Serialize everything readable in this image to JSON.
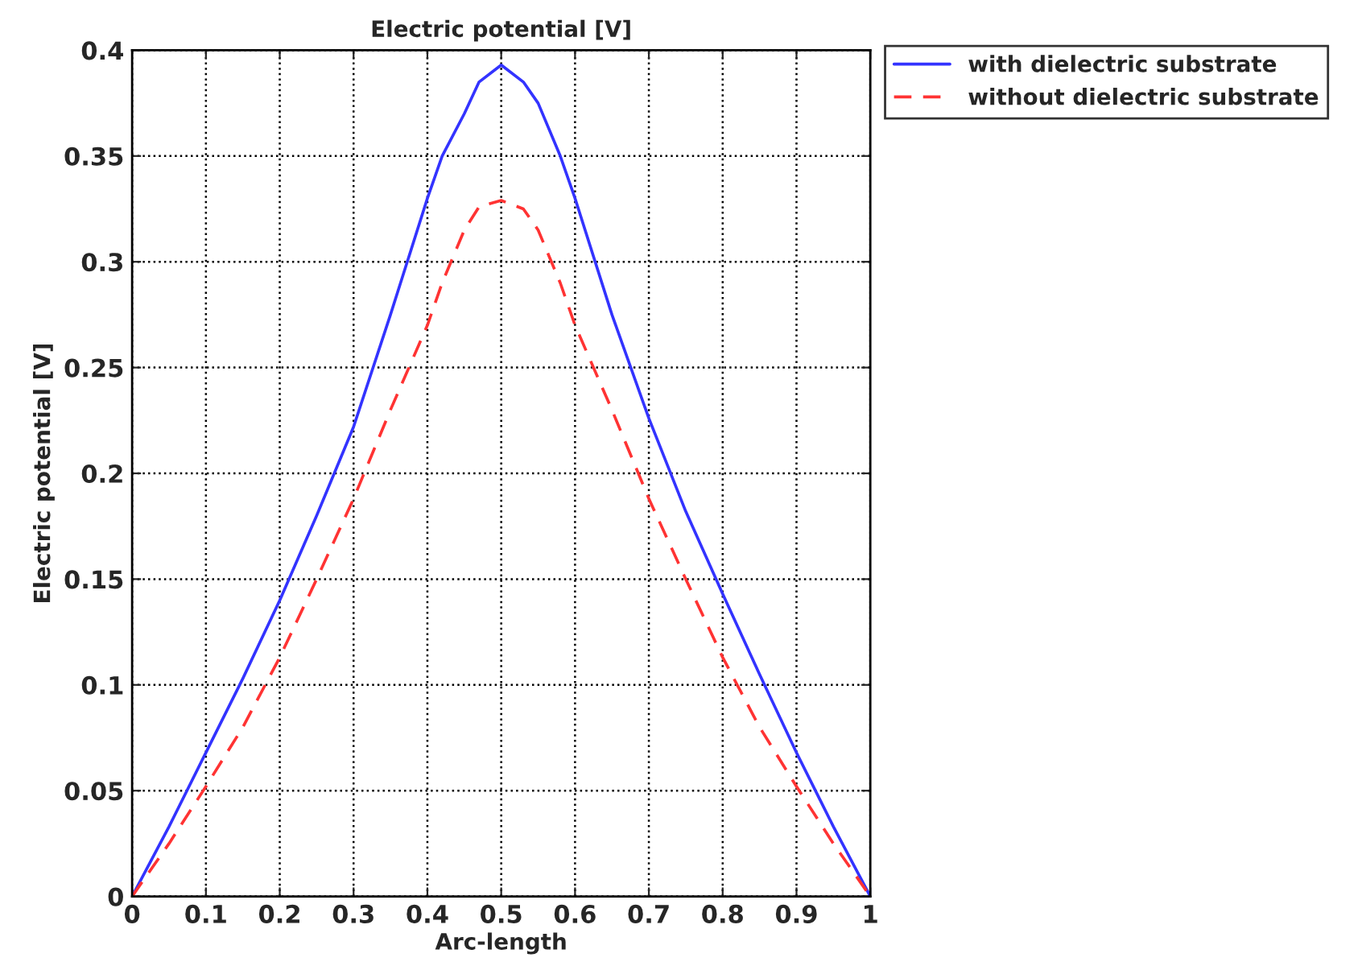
{
  "chart_data": {
    "type": "line",
    "title": "Electric potential [V]",
    "xlabel": "Arc-length",
    "ylabel": "Electric potential [V]",
    "x": [
      0,
      0.05,
      0.1,
      0.15,
      0.2,
      0.25,
      0.3,
      0.35,
      0.4,
      0.42,
      0.45,
      0.47,
      0.5,
      0.53,
      0.55,
      0.58,
      0.6,
      0.65,
      0.7,
      0.75,
      0.8,
      0.85,
      0.9,
      0.95,
      1
    ],
    "series": [
      {
        "name": "with dielectric substrate",
        "color": "#3333ff",
        "line_style": "solid",
        "values": [
          0,
          0.033,
          0.068,
          0.103,
          0.14,
          0.18,
          0.222,
          0.275,
          0.33,
          0.35,
          0.37,
          0.385,
          0.393,
          0.385,
          0.375,
          0.35,
          0.33,
          0.275,
          0.226,
          0.182,
          0.143,
          0.105,
          0.068,
          0.033,
          0
        ]
      },
      {
        "name": "without dielectric substrate",
        "color": "#ff3333",
        "line_style": "dashed",
        "values": [
          0,
          0.025,
          0.052,
          0.08,
          0.113,
          0.15,
          0.188,
          0.23,
          0.27,
          0.29,
          0.315,
          0.326,
          0.329,
          0.325,
          0.315,
          0.29,
          0.27,
          0.23,
          0.188,
          0.15,
          0.113,
          0.08,
          0.052,
          0.025,
          0
        ]
      }
    ],
    "xlim": [
      0,
      1
    ],
    "xticks": [
      0,
      0.1,
      0.2,
      0.3,
      0.4,
      0.5,
      0.6,
      0.7,
      0.8,
      0.9,
      1
    ],
    "ylim": [
      0,
      0.4
    ],
    "yticks": [
      0,
      0.05,
      0.1,
      0.15,
      0.2,
      0.25,
      0.3,
      0.35,
      0.4
    ],
    "grid": true,
    "legend": "top right"
  }
}
